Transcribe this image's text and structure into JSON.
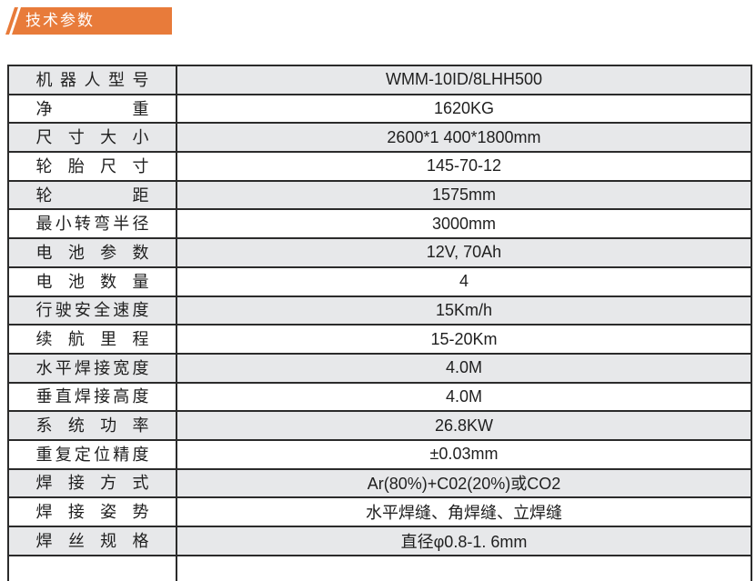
{
  "header": {
    "title": "技术参数"
  },
  "colors": {
    "accent": "#E87B3A",
    "row_alt": "#E7E8EA",
    "border": "#2B2B2B"
  },
  "table": {
    "rows": [
      {
        "label": "机器人型号",
        "value": "WMM-10ID/8LHH500"
      },
      {
        "label": "净重",
        "value": "1620KG"
      },
      {
        "label": "尺寸大小",
        "value": "2600*1 400*1800mm"
      },
      {
        "label": "轮胎尺寸",
        "value": "145-70-12"
      },
      {
        "label": "轮距",
        "value": "1575mm"
      },
      {
        "label": "最小转弯半径",
        "value": "3000mm"
      },
      {
        "label": "电池参数",
        "value": "12V, 70Ah"
      },
      {
        "label": "电池数量",
        "value": "4"
      },
      {
        "label": "行驶安全速度",
        "value": "15Km/h"
      },
      {
        "label": "续航里程",
        "value": "15-20Km"
      },
      {
        "label": "水平焊接宽度",
        "value": "4.0M"
      },
      {
        "label": "垂直焊接高度",
        "value": "4.0M"
      },
      {
        "label": "系统功率",
        "value": "26.8KW"
      },
      {
        "label": "重复定位精度",
        "value": "±0.03mm"
      },
      {
        "label": "焊接方式",
        "value": "Ar(80%)+C02(20%)或CO2"
      },
      {
        "label": "焊接姿势",
        "value": "水平焊缝、角焊缝、立焊缝"
      },
      {
        "label": "焊丝规格",
        "value": "直径φ0.8-1. 6mm"
      },
      {
        "label": "",
        "value": ""
      }
    ]
  }
}
